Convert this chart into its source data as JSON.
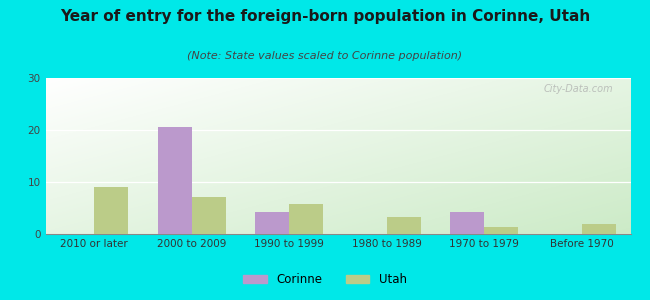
{
  "title": "Year of entry for the foreign-born population in Corinne, Utah",
  "subtitle": "(Note: State values scaled to Corinne population)",
  "categories": [
    "2010 or later",
    "2000 to 2009",
    "1990 to 1999",
    "1980 to 1989",
    "1970 to 1979",
    "Before 1970"
  ],
  "corinne_values": [
    0,
    20.5,
    4.2,
    0,
    4.2,
    0
  ],
  "utah_values": [
    9,
    7.2,
    5.8,
    3.3,
    1.3,
    2.0
  ],
  "corinne_color": "#bb99cc",
  "utah_color": "#bbcc88",
  "bg_outer": "#00e8e8",
  "ylim": [
    0,
    30
  ],
  "yticks": [
    0,
    10,
    20,
    30
  ],
  "bar_width": 0.35,
  "title_fontsize": 11,
  "subtitle_fontsize": 8,
  "tick_fontsize": 7.5,
  "legend_fontsize": 8.5
}
